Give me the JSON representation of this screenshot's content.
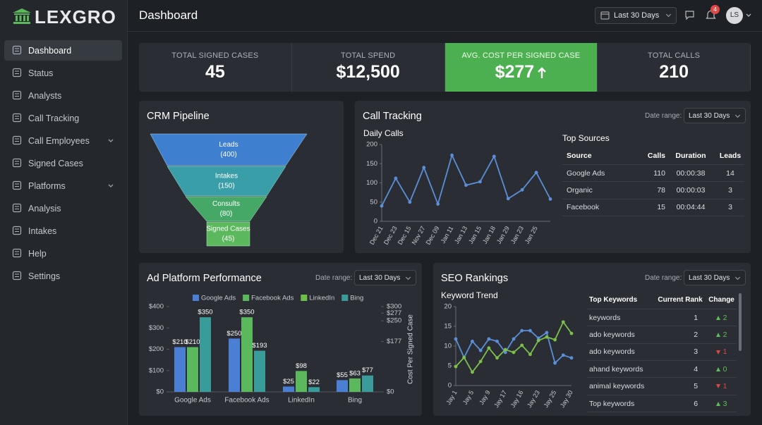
{
  "brand": "LEXGRO",
  "sidebar": {
    "items": [
      "Dashboard",
      "Status",
      "Analysts",
      "Call Tracking",
      "Call Employees",
      "Signed Cases",
      "Platforms",
      "Analysis",
      "Intakes",
      "Help",
      "Settings"
    ]
  },
  "header": {
    "title": "Dashboard",
    "date_range": "Last 30 Days",
    "notifications": 4,
    "avatar": "LS"
  },
  "kpis": [
    {
      "label": "TOTAL SIGNED CASES",
      "value": "45"
    },
    {
      "label": "TOTAL SPEND",
      "value": "$12,500"
    },
    {
      "label": "AVG. COST PER SIGNED CASE",
      "value": "$277",
      "highlight": true,
      "trend": "up"
    },
    {
      "label": "TOTAL CALLS",
      "value": "210"
    }
  ],
  "call_tracking": {
    "title": "Call Tracking",
    "date_label": "Date range:",
    "date_value": "Last 30 Days",
    "sources": {
      "title": "Top Sources",
      "columns": [
        "Source",
        "Calls",
        "Duration",
        "Leads"
      ],
      "rows": [
        [
          "Google Ads",
          "110",
          "00:00:38",
          "14"
        ],
        [
          "Organic",
          "78",
          "00:00:03",
          "3"
        ],
        [
          "Facebook",
          "15",
          "00:04:44",
          "3"
        ]
      ]
    }
  },
  "ad_platform": {
    "date_label": "Date range:",
    "date_value": "Last 30 Days"
  },
  "seo": {
    "title": "SEO Rankings",
    "date_label": "Date range:",
    "date_value": "Last 30 Days",
    "keywords": {
      "columns": [
        "Top Keywords",
        "Current Rank",
        "Change"
      ],
      "rows": [
        {
          "keyword": "keywords",
          "rank": "1",
          "change": "2",
          "direction": "up"
        },
        {
          "keyword": "ado keywords",
          "rank": "2",
          "change": "2",
          "direction": "up"
        },
        {
          "keyword": "ado keywords",
          "rank": "3",
          "change": "1",
          "direction": "down"
        },
        {
          "keyword": "ahand keywords",
          "rank": "4",
          "change": "0",
          "direction": "up"
        },
        {
          "keyword": "animal keywords",
          "rank": "5",
          "change": "1",
          "direction": "down"
        },
        {
          "keyword": "Top keywords",
          "rank": "6",
          "change": "3",
          "direction": "up"
        }
      ]
    }
  },
  "chart_data": [
    {
      "type": "funnel",
      "title": "CRM Pipeline",
      "categories": [
        "Leads",
        "Intakes",
        "Consults",
        "Signed Cases"
      ],
      "values": [
        400,
        150,
        80,
        45
      ],
      "value_labels": [
        "(400)",
        "(150)",
        "(80)",
        "(45)"
      ],
      "colors": [
        "#3f7fd0",
        "#3a9ea8",
        "#45a866",
        "#5cb85c"
      ]
    },
    {
      "type": "line",
      "title": "Daily Calls",
      "categories": [
        "Dec 21",
        "Dec 23",
        "Dec 15",
        "Nov 27",
        "Dec 09",
        "Jan 11",
        "Jan 13",
        "Jan 15",
        "Jan 18",
        "Jan 29",
        "Jan 23",
        "Jan 25",
        null
      ],
      "values": [
        40,
        112,
        50,
        140,
        45,
        172,
        94,
        103,
        169,
        59,
        82,
        127,
        58
      ],
      "color": "#5b8fd9",
      "ylim": [
        0,
        200
      ],
      "yticks": [
        0,
        50,
        100,
        150,
        200
      ],
      "grid": false
    },
    {
      "type": "bar",
      "title": "Ad Platform Performance",
      "categories": [
        "Google Ads",
        "Facebook Ads",
        "LinkedIn",
        "Bing"
      ],
      "legend": [
        {
          "name": "Google Ads",
          "color": "#4a7fd4"
        },
        {
          "name": "Facebook Ads",
          "color": "#5cb85c"
        },
        {
          "name": "LinkedIn",
          "color": "#6cc04a"
        },
        {
          "name": "Bing",
          "color": "#3a9b9b"
        }
      ],
      "series": [
        {
          "color": "#4a7fd4",
          "values": [
            210,
            250,
            25,
            55
          ],
          "value_labels": [
            "$210",
            "$250",
            "$25",
            "$55"
          ]
        },
        {
          "color": "#5cb85c",
          "values": [
            210,
            350,
            98,
            63
          ],
          "value_labels": [
            "$210",
            "$350",
            "$98",
            "$63"
          ]
        },
        {
          "color": "#3a9b9b",
          "values": [
            350,
            193,
            22,
            77
          ],
          "value_labels": [
            "$350",
            "$193",
            "$22",
            "$77"
          ]
        }
      ],
      "ylim": [
        0,
        400
      ],
      "yticks": [
        {
          "value": 0,
          "label": "$0"
        },
        {
          "value": 100,
          "label": "$100"
        },
        {
          "value": 200,
          "label": "$200"
        },
        {
          "value": 300,
          "label": "$300"
        },
        {
          "value": 400,
          "label": "$400"
        }
      ],
      "y2label": "Cost Per Signed Case",
      "y2lim": [
        0,
        300
      ],
      "y2ticks": [
        {
          "value": 0,
          "label": "$0"
        },
        {
          "value": 177,
          "label": "$177"
        },
        {
          "value": 250,
          "label": "$250"
        },
        {
          "value": 277,
          "label": "$277"
        },
        {
          "value": 300,
          "label": "$300"
        }
      ],
      "grid": false
    },
    {
      "type": "line",
      "title": "Keyword Trend",
      "categories": [
        "Jay 1",
        null,
        "Jay 5",
        null,
        "Jay 9",
        null,
        "Jay 17",
        null,
        "Jay 16",
        null,
        "Jay 23",
        null,
        "Jay 25",
        null,
        "Jay 30"
      ],
      "series": [
        {
          "color": "#5b8fd9",
          "values": [
            11.8,
            7.1,
            11.2,
            8.9,
            11.8,
            11.2,
            8.4,
            11.8,
            13.9,
            13.9,
            12,
            13.4,
            5.7,
            7.7,
            7
          ]
        },
        {
          "color": "#7cc04b",
          "values": [
            4.8,
            7.1,
            3.4,
            6.1,
            9.5,
            7,
            9.1,
            8.4,
            10.2,
            7.9,
            11.4,
            12.3,
            11.6,
            16.1,
            13.2
          ]
        }
      ],
      "ylim": [
        0,
        20
      ],
      "yticks": [
        0,
        5,
        10,
        15,
        20
      ],
      "grid": false
    }
  ]
}
